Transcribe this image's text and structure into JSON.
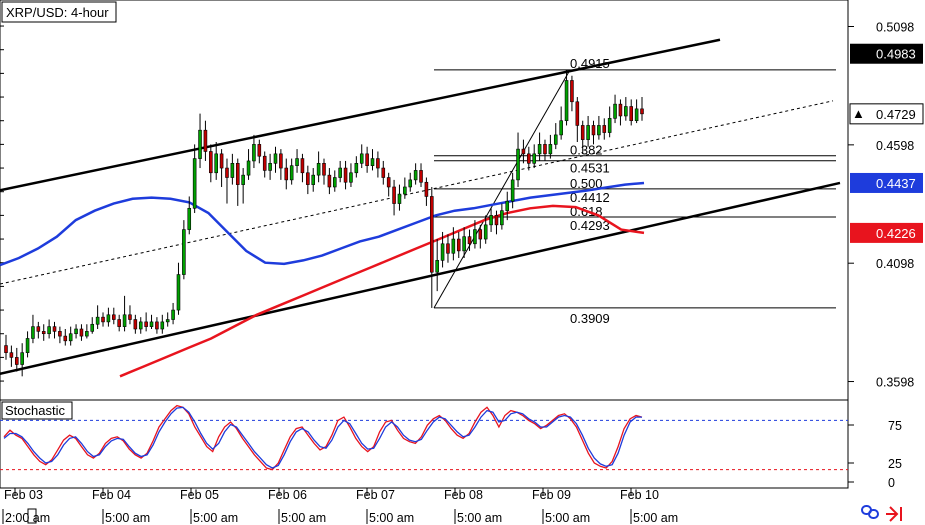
{
  "chart_data": [
    {
      "type": "candlestick",
      "title": "XRP/USD: 4-hour",
      "ylim": [
        0.352,
        0.521
      ],
      "y_ticks": [
        "0.5098",
        "0.4598",
        "0.4098",
        "0.3598"
      ],
      "x_ticks": [
        "Feb 03",
        "Feb 04",
        "Feb 05",
        "Feb 06",
        "Feb 07",
        "Feb 08",
        "Feb 09",
        "Feb 10"
      ],
      "time_labels": [
        "2:00 am",
        "5:00 am",
        "5:00 am",
        "5:00 am",
        "5:00 am",
        "5:00 am",
        "5:00 am",
        "5:00 am"
      ],
      "price_tags": [
        {
          "value": "0.4983",
          "color": "#000000"
        },
        {
          "value": "0.4729",
          "color": "#ffffff",
          "marker": "▲"
        },
        {
          "value": "0.4437",
          "color": "#1e3cdc"
        },
        {
          "value": "0.4226",
          "color": "#e8141e"
        }
      ],
      "fib_levels": [
        {
          "label": "0.4915",
          "value": 0.4915
        },
        {
          "label": "0.382",
          "value": 0.4552
        },
        {
          "label": "0.4531",
          "value": 0.4531
        },
        {
          "label": "0.500",
          "value": 0.4412
        },
        {
          "label": "0.4412",
          "value": 0.4412
        },
        {
          "label": "0.618",
          "value": 0.4293
        },
        {
          "label": "0.4293",
          "value": 0.4293
        },
        {
          "label": "0.3909",
          "value": 0.3909
        }
      ],
      "channel": {
        "upper": [
          [
            0,
            0.4406
          ],
          [
            720,
            0.5042
          ]
        ],
        "lower": [
          [
            0,
            0.3631
          ],
          [
            840,
            0.4437
          ]
        ],
        "mid": [
          [
            0,
            0.401
          ],
          [
            833,
            0.4784
          ]
        ]
      },
      "candles": [
        [
          0.375,
          0.372,
          0.3795,
          0.369
        ],
        [
          0.372,
          0.37,
          0.375,
          0.366
        ],
        [
          0.37,
          0.367,
          0.374,
          0.364
        ],
        [
          0.367,
          0.372,
          0.376,
          0.362
        ],
        [
          0.372,
          0.378,
          0.381,
          0.37
        ],
        [
          0.378,
          0.383,
          0.388,
          0.376
        ],
        [
          0.383,
          0.381,
          0.385,
          0.378
        ],
        [
          0.381,
          0.38,
          0.384,
          0.377
        ],
        [
          0.38,
          0.383,
          0.386,
          0.378
        ],
        [
          0.383,
          0.381,
          0.385,
          0.378
        ],
        [
          0.381,
          0.379,
          0.383,
          0.376
        ],
        [
          0.379,
          0.377,
          0.382,
          0.375
        ],
        [
          0.377,
          0.38,
          0.383,
          0.375
        ],
        [
          0.38,
          0.382,
          0.384,
          0.378
        ],
        [
          0.382,
          0.379,
          0.384,
          0.377
        ],
        [
          0.379,
          0.381,
          0.384,
          0.378
        ],
        [
          0.381,
          0.384,
          0.387,
          0.38
        ],
        [
          0.384,
          0.387,
          0.392,
          0.382
        ],
        [
          0.387,
          0.385,
          0.389,
          0.383
        ],
        [
          0.385,
          0.388,
          0.391,
          0.383
        ],
        [
          0.388,
          0.386,
          0.391,
          0.384
        ],
        [
          0.386,
          0.383,
          0.388,
          0.381
        ],
        [
          0.383,
          0.388,
          0.396,
          0.381
        ],
        [
          0.388,
          0.386,
          0.392,
          0.384
        ],
        [
          0.386,
          0.382,
          0.388,
          0.38
        ],
        [
          0.382,
          0.385,
          0.387,
          0.38
        ],
        [
          0.385,
          0.383,
          0.389,
          0.381
        ],
        [
          0.383,
          0.385,
          0.388,
          0.382
        ],
        [
          0.385,
          0.382,
          0.387,
          0.38
        ],
        [
          0.382,
          0.385,
          0.388,
          0.38
        ],
        [
          0.385,
          0.386,
          0.389,
          0.383
        ],
        [
          0.386,
          0.39,
          0.393,
          0.384
        ],
        [
          0.39,
          0.405,
          0.41,
          0.388
        ],
        [
          0.405,
          0.424,
          0.428,
          0.403
        ],
        [
          0.424,
          0.433,
          0.438,
          0.422
        ],
        [
          0.433,
          0.454,
          0.46,
          0.431
        ],
        [
          0.454,
          0.466,
          0.473,
          0.45
        ],
        [
          0.466,
          0.457,
          0.47,
          0.453
        ],
        [
          0.457,
          0.448,
          0.46,
          0.444
        ],
        [
          0.448,
          0.456,
          0.461,
          0.445
        ],
        [
          0.456,
          0.45,
          0.458,
          0.442
        ],
        [
          0.45,
          0.446,
          0.454,
          0.435
        ],
        [
          0.446,
          0.452,
          0.456,
          0.443
        ],
        [
          0.452,
          0.443,
          0.454,
          0.434
        ],
        [
          0.443,
          0.447,
          0.45,
          0.435
        ],
        [
          0.447,
          0.453,
          0.458,
          0.445
        ],
        [
          0.453,
          0.46,
          0.464,
          0.45
        ],
        [
          0.46,
          0.455,
          0.462,
          0.452
        ],
        [
          0.455,
          0.449,
          0.457,
          0.446
        ],
        [
          0.449,
          0.452,
          0.456,
          0.445
        ],
        [
          0.452,
          0.456,
          0.459,
          0.448
        ],
        [
          0.456,
          0.45,
          0.458,
          0.445
        ],
        [
          0.45,
          0.445,
          0.454,
          0.441
        ],
        [
          0.445,
          0.451,
          0.454,
          0.443
        ],
        [
          0.451,
          0.454,
          0.458,
          0.448
        ],
        [
          0.454,
          0.448,
          0.456,
          0.444
        ],
        [
          0.448,
          0.443,
          0.451,
          0.439
        ],
        [
          0.443,
          0.447,
          0.45,
          0.44
        ],
        [
          0.447,
          0.452,
          0.457,
          0.444
        ],
        [
          0.452,
          0.447,
          0.454,
          0.443
        ],
        [
          0.447,
          0.442,
          0.45,
          0.439
        ],
        [
          0.442,
          0.446,
          0.449,
          0.44
        ],
        [
          0.446,
          0.45,
          0.453,
          0.444
        ],
        [
          0.45,
          0.444,
          0.453,
          0.441
        ],
        [
          0.444,
          0.448,
          0.452,
          0.442
        ],
        [
          0.448,
          0.452,
          0.455,
          0.446
        ],
        [
          0.452,
          0.456,
          0.46,
          0.45
        ],
        [
          0.456,
          0.451,
          0.459,
          0.448
        ],
        [
          0.451,
          0.454,
          0.458,
          0.449
        ],
        [
          0.454,
          0.45,
          0.457,
          0.446
        ],
        [
          0.45,
          0.446,
          0.453,
          0.443
        ],
        [
          0.446,
          0.442,
          0.448,
          0.438
        ],
        [
          0.442,
          0.435,
          0.445,
          0.43
        ],
        [
          0.435,
          0.439,
          0.443,
          0.432
        ],
        [
          0.439,
          0.442,
          0.446,
          0.437
        ],
        [
          0.442,
          0.445,
          0.448,
          0.44
        ],
        [
          0.445,
          0.449,
          0.452,
          0.443
        ],
        [
          0.449,
          0.444,
          0.452,
          0.442
        ],
        [
          0.444,
          0.438,
          0.446,
          0.434
        ],
        [
          0.438,
          0.406,
          0.442,
          0.3909
        ],
        [
          0.406,
          0.411,
          0.42,
          0.398
        ],
        [
          0.411,
          0.418,
          0.423,
          0.408
        ],
        [
          0.418,
          0.414,
          0.422,
          0.41
        ],
        [
          0.414,
          0.42,
          0.425,
          0.411
        ],
        [
          0.42,
          0.415,
          0.423,
          0.412
        ],
        [
          0.415,
          0.421,
          0.425,
          0.412
        ],
        [
          0.421,
          0.418,
          0.424,
          0.415
        ],
        [
          0.418,
          0.424,
          0.428,
          0.416
        ],
        [
          0.424,
          0.42,
          0.426,
          0.416
        ],
        [
          0.42,
          0.426,
          0.43,
          0.418
        ],
        [
          0.426,
          0.43,
          0.433,
          0.423
        ],
        [
          0.43,
          0.426,
          0.432,
          0.422
        ],
        [
          0.426,
          0.432,
          0.435,
          0.424
        ],
        [
          0.432,
          0.436,
          0.44,
          0.428
        ],
        [
          0.436,
          0.445,
          0.448,
          0.433
        ],
        [
          0.445,
          0.458,
          0.465,
          0.442
        ],
        [
          0.458,
          0.456,
          0.462,
          0.452
        ],
        [
          0.456,
          0.452,
          0.459,
          0.449
        ],
        [
          0.452,
          0.456,
          0.46,
          0.45
        ],
        [
          0.456,
          0.46,
          0.465,
          0.453
        ],
        [
          0.46,
          0.456,
          0.462,
          0.453
        ],
        [
          0.456,
          0.46,
          0.464,
          0.454
        ],
        [
          0.46,
          0.464,
          0.469,
          0.458
        ],
        [
          0.464,
          0.47,
          0.476,
          0.462
        ],
        [
          0.47,
          0.487,
          0.4915,
          0.468
        ],
        [
          0.487,
          0.478,
          0.489,
          0.474
        ],
        [
          0.478,
          0.468,
          0.48,
          0.461
        ],
        [
          0.468,
          0.462,
          0.47,
          0.456
        ],
        [
          0.462,
          0.468,
          0.472,
          0.459
        ],
        [
          0.468,
          0.464,
          0.47,
          0.46
        ],
        [
          0.464,
          0.468,
          0.472,
          0.462
        ],
        [
          0.468,
          0.465,
          0.471,
          0.462
        ],
        [
          0.465,
          0.471,
          0.476,
          0.463
        ],
        [
          0.471,
          0.477,
          0.481,
          0.469
        ],
        [
          0.477,
          0.472,
          0.479,
          0.468
        ],
        [
          0.472,
          0.476,
          0.48,
          0.47
        ],
        [
          0.476,
          0.47,
          0.479,
          0.468
        ],
        [
          0.47,
          0.475,
          0.479,
          0.469
        ],
        [
          0.475,
          0.4729,
          0.48,
          0.47
        ]
      ],
      "ma_100": [
        0.409,
        0.412,
        0.416,
        0.421,
        0.428,
        0.432,
        0.435,
        0.437,
        0.4375,
        0.437,
        0.4355,
        0.431,
        0.423,
        0.415,
        0.41,
        0.4095,
        0.411,
        0.413,
        0.416,
        0.419,
        0.421,
        0.424,
        0.427,
        0.43,
        0.432,
        0.433,
        0.4345,
        0.436,
        0.4375,
        0.4385,
        0.4395,
        0.4405,
        0.4418,
        0.443,
        0.4437
      ],
      "ma_200": [
        0.362,
        0.366,
        0.37,
        0.374,
        0.378,
        0.383,
        0.388,
        0.392,
        0.396,
        0.4,
        0.404,
        0.408,
        0.412,
        0.416,
        0.42,
        0.424,
        0.428,
        0.431,
        0.433,
        0.434,
        0.4335,
        0.43,
        0.424,
        0.4226
      ]
    },
    {
      "type": "line",
      "title": "Stochastic",
      "ylim": [
        0,
        100
      ],
      "y_ticks": [
        "75",
        "25",
        "0"
      ],
      "levels": [
        80,
        20
      ],
      "series": [
        {
          "values": [
            60,
            68,
            62,
            58,
            48,
            38,
            30,
            26,
            32,
            44,
            56,
            62,
            58,
            48,
            38,
            34,
            40,
            52,
            58,
            60,
            55,
            45,
            38,
            34,
            40,
            55,
            72,
            82,
            92,
            98,
            96,
            88,
            72,
            60,
            48,
            42,
            60,
            72,
            78,
            70,
            58,
            48,
            38,
            30,
            22,
            20,
            28,
            44,
            60,
            70,
            72,
            62,
            52,
            44,
            48,
            62,
            80,
            84,
            72,
            58,
            48,
            42,
            48,
            66,
            78,
            80,
            68,
            58,
            54,
            52,
            60,
            74,
            82,
            86,
            80,
            70,
            62,
            58,
            64,
            78,
            90,
            96,
            86,
            72,
            86,
            92,
            90,
            86,
            80,
            76,
            70,
            74,
            80,
            86,
            88,
            82,
            72,
            56,
            40,
            28,
            24,
            22,
            30,
            48,
            70,
            82,
            86,
            84
          ]
        },
        {
          "values": [
            58,
            64,
            64,
            60,
            52,
            42,
            34,
            28,
            30,
            38,
            50,
            58,
            60,
            52,
            42,
            36,
            38,
            48,
            55,
            58,
            57,
            48,
            40,
            36,
            38,
            50,
            66,
            78,
            88,
            95,
            96,
            90,
            78,
            64,
            52,
            45,
            52,
            66,
            75,
            72,
            62,
            52,
            42,
            34,
            26,
            22,
            25,
            38,
            54,
            66,
            70,
            66,
            56,
            48,
            46,
            56,
            72,
            80,
            76,
            64,
            52,
            45,
            46,
            58,
            72,
            78,
            72,
            62,
            56,
            54,
            57,
            68,
            78,
            84,
            82,
            74,
            66,
            60,
            62,
            72,
            84,
            92,
            90,
            78,
            80,
            88,
            90,
            88,
            82,
            78,
            72,
            72,
            78,
            84,
            86,
            84,
            76,
            62,
            46,
            34,
            27,
            24,
            26,
            40,
            62,
            78,
            84,
            84
          ]
        }
      ]
    }
  ]
}
